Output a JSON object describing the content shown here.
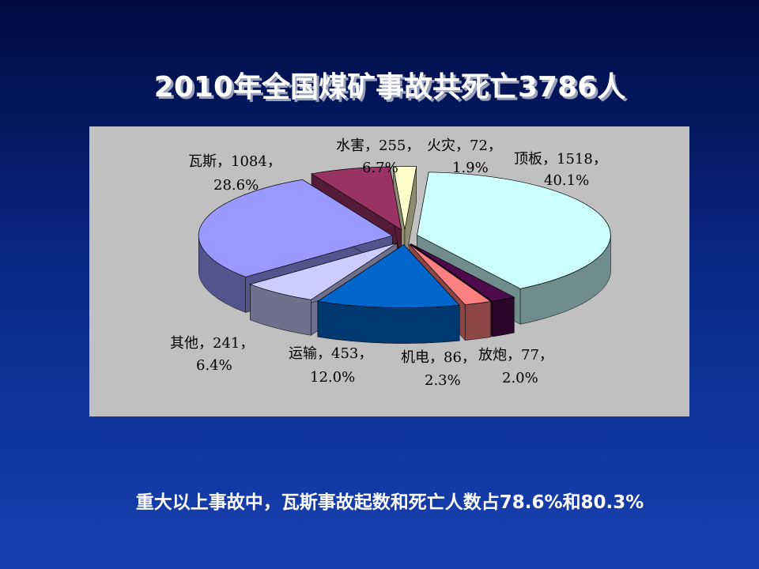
{
  "chart_data": {
    "type": "pie3d",
    "title": "2010年全国煤矿事故共死亡3786人",
    "categories": [
      "顶板",
      "放炮",
      "机电",
      "运输",
      "其他",
      "瓦斯",
      "水害",
      "火灾"
    ],
    "values": [
      1518,
      77,
      86,
      453,
      241,
      1084,
      255,
      72
    ],
    "percents": [
      {
        "value": 40.1,
        "label": "40.1%"
      },
      {
        "value": 2.0,
        "label": "2.0%"
      },
      {
        "value": 2.3,
        "label": "2.3%"
      },
      {
        "value": 12.0,
        "label": "12.0%"
      },
      {
        "value": 6.4,
        "label": "6.4%"
      },
      {
        "value": 28.6,
        "label": "28.6%"
      },
      {
        "value": 6.7,
        "label": "6.7%"
      },
      {
        "value": 1.9,
        "label": "1.9%"
      }
    ],
    "label_separator": "，",
    "colors": [
      "#ccffff",
      "#4d0a4d",
      "#ff8080",
      "#0066cc",
      "#ccccff",
      "#9999ff",
      "#993366",
      "#ffffcc"
    ],
    "footnote": "重大以上事故中，瓦斯事故起数和死亡人数占78.6%和80.3%"
  }
}
